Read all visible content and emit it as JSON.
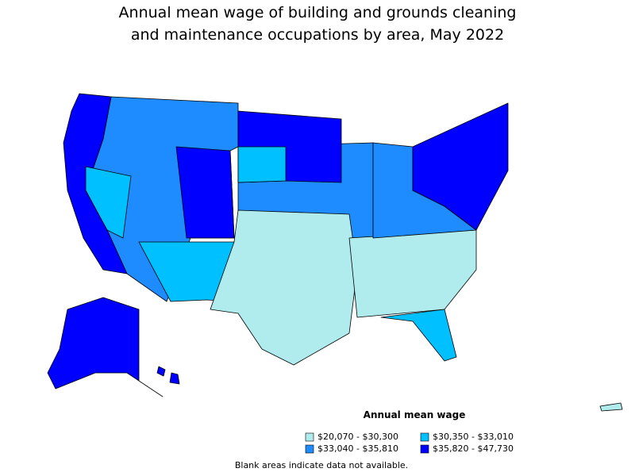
{
  "title": [
    "Annual mean wage of building and grounds cleaning",
    "and maintenance occupations by area, May 2022"
  ],
  "legend": {
    "title": "Annual mean wage",
    "items": [
      {
        "label": "$20,070 - $30,300",
        "color": "#b0ecee"
      },
      {
        "label": "$30,350 - $33,010",
        "color": "#00c0ff"
      },
      {
        "label": "$33,040 - $35,810",
        "color": "#1e8cff"
      },
      {
        "label": "$35,820 - $47,730",
        "color": "#0000ff"
      }
    ]
  },
  "note": "Blank areas indicate data not available."
}
